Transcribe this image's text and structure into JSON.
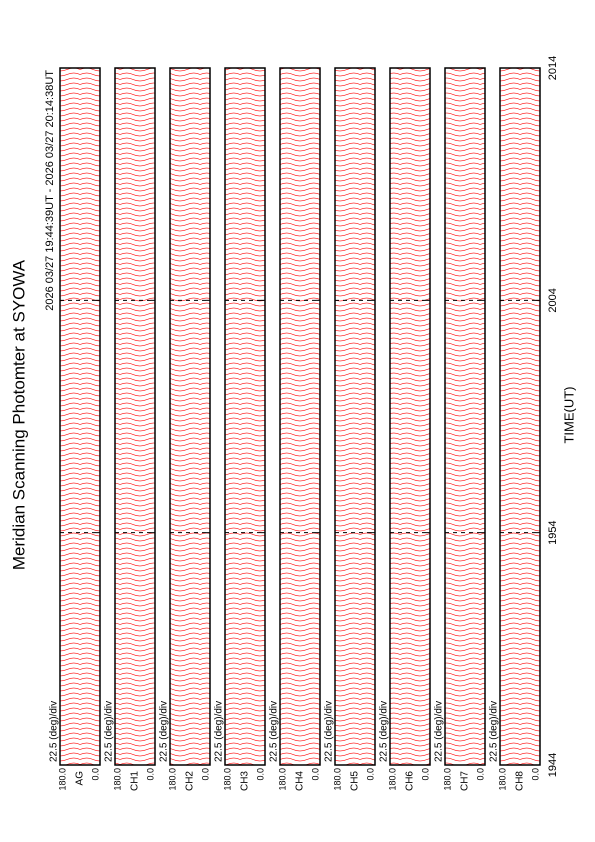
{
  "chart_data": {
    "type": "stackplot",
    "title": "Meridian Scanning Photomter at SYOWA",
    "subtitle": "2026 03/27 19:44:39UT - 2026 03/27 20:14:38UT",
    "x_label": "TIME(UT)",
    "xticks": [
      "1944",
      "1954",
      "2004",
      "2014"
    ],
    "line_color": "#ff0000",
    "panels": [
      {
        "label": "AG",
        "scale": "22.5 (deg)/div",
        "ylim": [
          0,
          180
        ],
        "yticks": [
          {
            "value": 180,
            "label": "180.0"
          },
          {
            "value": 0,
            "label": "0.0"
          }
        ]
      },
      {
        "label": "CH1",
        "scale": "22.5 (deg)/div",
        "ylim": [
          0,
          180
        ],
        "yticks": [
          {
            "value": 180,
            "label": "180.0"
          },
          {
            "value": 0,
            "label": "0.0"
          }
        ]
      },
      {
        "label": "CH2",
        "scale": "22.5 (deg)/div",
        "ylim": [
          0,
          180
        ],
        "yticks": [
          {
            "value": 180,
            "label": "180.0"
          },
          {
            "value": 0,
            "label": "0.0"
          }
        ]
      },
      {
        "label": "CH3",
        "scale": "22.5 (deg)/div",
        "ylim": [
          0,
          180
        ],
        "yticks": [
          {
            "value": 180,
            "label": "180.0"
          },
          {
            "value": 0,
            "label": "0.0"
          }
        ]
      },
      {
        "label": "CH4",
        "scale": "22.5 (deg)/div",
        "ylim": [
          0,
          180
        ],
        "yticks": [
          {
            "value": 180,
            "label": "180.0"
          },
          {
            "value": 0,
            "label": "0.0"
          }
        ]
      },
      {
        "label": "CH5",
        "scale": "22.5 (deg)/div",
        "ylim": [
          0,
          180
        ],
        "yticks": [
          {
            "value": 180,
            "label": "180.0"
          },
          {
            "value": 0,
            "label": "0.0"
          }
        ]
      },
      {
        "label": "CH6",
        "scale": "22.5 (deg)/div",
        "ylim": [
          0,
          180
        ],
        "yticks": [
          {
            "value": 180,
            "label": "180.0"
          },
          {
            "value": 0,
            "label": "0.0"
          }
        ]
      },
      {
        "label": "CH7",
        "scale": "22.5 (deg)/div",
        "ylim": [
          0,
          180
        ],
        "yticks": [
          {
            "value": 180,
            "label": "180.0"
          },
          {
            "value": 0,
            "label": "0.0"
          }
        ]
      },
      {
        "label": "CH8",
        "scale": "22.5 (deg)/div",
        "ylim": [
          0,
          180
        ],
        "yticks": [
          {
            "value": 180,
            "label": "180.0"
          },
          {
            "value": 0,
            "label": "0.0"
          }
        ]
      }
    ]
  }
}
